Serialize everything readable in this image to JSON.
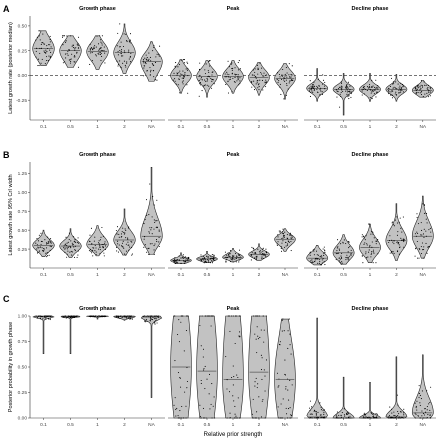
{
  "figure": {
    "x_axis_label": "Relative prior strength"
  },
  "chart_data": [
    {
      "type": "violin",
      "panel_label": "A",
      "ylabel": "Latest growth rate (posterior median)",
      "ylim": [
        -0.45,
        0.6
      ],
      "y_ticks": [
        -0.25,
        0,
        0.25,
        0.5
      ],
      "y_tick_labels": [
        "-0.25",
        "0.00",
        "0.25",
        "0.50"
      ],
      "reference_line_y": 0,
      "reference_line_style": "dashed",
      "categories": [
        "0.1",
        "0.5",
        "1",
        "2",
        "NA"
      ],
      "facets": [
        {
          "title": "Growth phase",
          "series": [
            {
              "name": "0.1",
              "median": 0.27,
              "q1": 0.2,
              "q3": 0.34,
              "min": 0.1,
              "max": 0.45
            },
            {
              "name": "0.5",
              "median": 0.25,
              "q1": 0.18,
              "q3": 0.31,
              "min": 0.08,
              "max": 0.4
            },
            {
              "name": "1",
              "median": 0.24,
              "q1": 0.18,
              "q3": 0.3,
              "min": 0.06,
              "max": 0.4
            },
            {
              "name": "2",
              "median": 0.23,
              "q1": 0.16,
              "q3": 0.3,
              "min": 0.02,
              "max": 0.52
            },
            {
              "name": "NA",
              "median": 0.14,
              "q1": 0.06,
              "q3": 0.2,
              "min": -0.06,
              "max": 0.34
            }
          ]
        },
        {
          "title": "Peak",
          "series": [
            {
              "name": "0.1",
              "median": 0.0,
              "q1": -0.05,
              "q3": 0.05,
              "min": -0.18,
              "max": 0.16
            },
            {
              "name": "0.5",
              "median": -0.01,
              "q1": -0.06,
              "q3": 0.04,
              "min": -0.22,
              "max": 0.15
            },
            {
              "name": "1",
              "median": -0.01,
              "q1": -0.06,
              "q3": 0.04,
              "min": -0.18,
              "max": 0.15
            },
            {
              "name": "2",
              "median": -0.02,
              "q1": -0.07,
              "q3": 0.03,
              "min": -0.2,
              "max": 0.13
            },
            {
              "name": "NA",
              "median": -0.03,
              "q1": -0.08,
              "q3": 0.02,
              "min": -0.24,
              "max": 0.12
            }
          ]
        },
        {
          "title": "Decline phase",
          "series": [
            {
              "name": "0.1",
              "median": -0.13,
              "q1": -0.16,
              "q3": -0.1,
              "min": -0.26,
              "max": 0.07
            },
            {
              "name": "0.5",
              "median": -0.14,
              "q1": -0.17,
              "q3": -0.11,
              "min": -0.4,
              "max": 0.02
            },
            {
              "name": "1",
              "median": -0.14,
              "q1": -0.17,
              "q3": -0.11,
              "min": -0.26,
              "max": 0.02
            },
            {
              "name": "2",
              "median": -0.14,
              "q1": -0.17,
              "q3": -0.11,
              "min": -0.26,
              "max": 0.01
            },
            {
              "name": "NA",
              "median": -0.15,
              "q1": -0.18,
              "q3": -0.12,
              "min": -0.22,
              "max": -0.05
            }
          ]
        }
      ]
    },
    {
      "type": "violin",
      "panel_label": "B",
      "ylabel": "Latest growth rate 95% CrI width",
      "ylim": [
        0.0,
        1.4
      ],
      "y_ticks": [
        0.25,
        0.5,
        0.75,
        1.0,
        1.25
      ],
      "y_tick_labels": [
        "0.25",
        "0.50",
        "0.75",
        "1.00",
        "1.25"
      ],
      "categories": [
        "0.1",
        "0.5",
        "1",
        "2",
        "NA"
      ],
      "facets": [
        {
          "title": "Growth phase",
          "series": [
            {
              "name": "0.1",
              "median": 0.3,
              "q1": 0.25,
              "q3": 0.35,
              "min": 0.15,
              "max": 0.5
            },
            {
              "name": "0.5",
              "median": 0.29,
              "q1": 0.24,
              "q3": 0.34,
              "min": 0.14,
              "max": 0.52
            },
            {
              "name": "1",
              "median": 0.31,
              "q1": 0.26,
              "q3": 0.38,
              "min": 0.16,
              "max": 0.56
            },
            {
              "name": "2",
              "median": 0.37,
              "q1": 0.3,
              "q3": 0.45,
              "min": 0.17,
              "max": 0.78
            },
            {
              "name": "NA",
              "median": 0.42,
              "q1": 0.33,
              "q3": 0.58,
              "min": 0.18,
              "max": 1.33
            }
          ]
        },
        {
          "title": "Peak",
          "series": [
            {
              "name": "0.1",
              "median": 0.1,
              "q1": 0.08,
              "q3": 0.12,
              "min": 0.06,
              "max": 0.2
            },
            {
              "name": "0.5",
              "median": 0.12,
              "q1": 0.1,
              "q3": 0.14,
              "min": 0.07,
              "max": 0.22
            },
            {
              "name": "1",
              "median": 0.14,
              "q1": 0.12,
              "q3": 0.17,
              "min": 0.08,
              "max": 0.26
            },
            {
              "name": "2",
              "median": 0.18,
              "q1": 0.15,
              "q3": 0.21,
              "min": 0.1,
              "max": 0.32
            },
            {
              "name": "NA",
              "median": 0.38,
              "q1": 0.33,
              "q3": 0.42,
              "min": 0.22,
              "max": 0.52
            }
          ]
        },
        {
          "title": "Decline phase",
          "series": [
            {
              "name": "0.1",
              "median": 0.13,
              "q1": 0.09,
              "q3": 0.18,
              "min": 0.04,
              "max": 0.3
            },
            {
              "name": "0.5",
              "median": 0.2,
              "q1": 0.14,
              "q3": 0.27,
              "min": 0.05,
              "max": 0.44
            },
            {
              "name": "1",
              "median": 0.27,
              "q1": 0.2,
              "q3": 0.35,
              "min": 0.07,
              "max": 0.58
            },
            {
              "name": "2",
              "median": 0.36,
              "q1": 0.28,
              "q3": 0.46,
              "min": 0.1,
              "max": 0.85
            },
            {
              "name": "NA",
              "median": 0.42,
              "q1": 0.32,
              "q3": 0.55,
              "min": 0.13,
              "max": 0.95
            }
          ]
        }
      ]
    },
    {
      "type": "violin",
      "panel_label": "C",
      "ylabel": "Posterior probability in growth phase",
      "ylim": [
        0.0,
        1.0
      ],
      "y_ticks": [
        0.0,
        0.25,
        0.5,
        0.75,
        1.0
      ],
      "y_tick_labels": [
        "0.00",
        "0.25",
        "0.50",
        "0.75",
        "1.00"
      ],
      "categories": [
        "0.1",
        "0.5",
        "1",
        "2",
        "NA"
      ],
      "facets": [
        {
          "title": "Growth phase",
          "series": [
            {
              "name": "0.1",
              "median": 0.995,
              "q1": 0.985,
              "q3": 1.0,
              "min": 0.63,
              "max": 1.0
            },
            {
              "name": "0.5",
              "median": 0.995,
              "q1": 0.99,
              "q3": 1.0,
              "min": 0.63,
              "max": 1.0
            },
            {
              "name": "1",
              "median": 0.998,
              "q1": 0.995,
              "q3": 1.0,
              "min": 0.97,
              "max": 1.0
            },
            {
              "name": "2",
              "median": 0.995,
              "q1": 0.985,
              "q3": 1.0,
              "min": 0.96,
              "max": 1.0
            },
            {
              "name": "NA",
              "median": 0.99,
              "q1": 0.97,
              "q3": 1.0,
              "min": 0.2,
              "max": 1.0
            }
          ]
        },
        {
          "title": "Peak",
          "series": [
            {
              "name": "0.1",
              "median": 0.5,
              "q1": 0.12,
              "q3": 0.92,
              "min": 0.0,
              "max": 1.0
            },
            {
              "name": "0.5",
              "median": 0.46,
              "q1": 0.1,
              "q3": 0.9,
              "min": 0.0,
              "max": 1.0
            },
            {
              "name": "1",
              "median": 0.38,
              "q1": 0.08,
              "q3": 0.88,
              "min": 0.0,
              "max": 1.0
            },
            {
              "name": "2",
              "median": 0.45,
              "q1": 0.12,
              "q3": 0.9,
              "min": 0.0,
              "max": 1.0
            },
            {
              "name": "NA",
              "median": 0.38,
              "q1": 0.1,
              "q3": 0.65,
              "min": 0.0,
              "max": 0.97
            }
          ]
        },
        {
          "title": "Decline phase",
          "series": [
            {
              "name": "0.1",
              "median": 0.01,
              "q1": 0.0,
              "q3": 0.06,
              "min": 0.0,
              "max": 0.98
            },
            {
              "name": "0.5",
              "median": 0.0,
              "q1": 0.0,
              "q3": 0.03,
              "min": 0.0,
              "max": 0.4
            },
            {
              "name": "1",
              "median": 0.0,
              "q1": 0.0,
              "q3": 0.02,
              "min": 0.0,
              "max": 0.35
            },
            {
              "name": "2",
              "median": 0.01,
              "q1": 0.0,
              "q3": 0.05,
              "min": 0.0,
              "max": 0.6
            },
            {
              "name": "NA",
              "median": 0.05,
              "q1": 0.01,
              "q3": 0.15,
              "min": 0.0,
              "max": 0.62
            }
          ]
        }
      ]
    }
  ]
}
